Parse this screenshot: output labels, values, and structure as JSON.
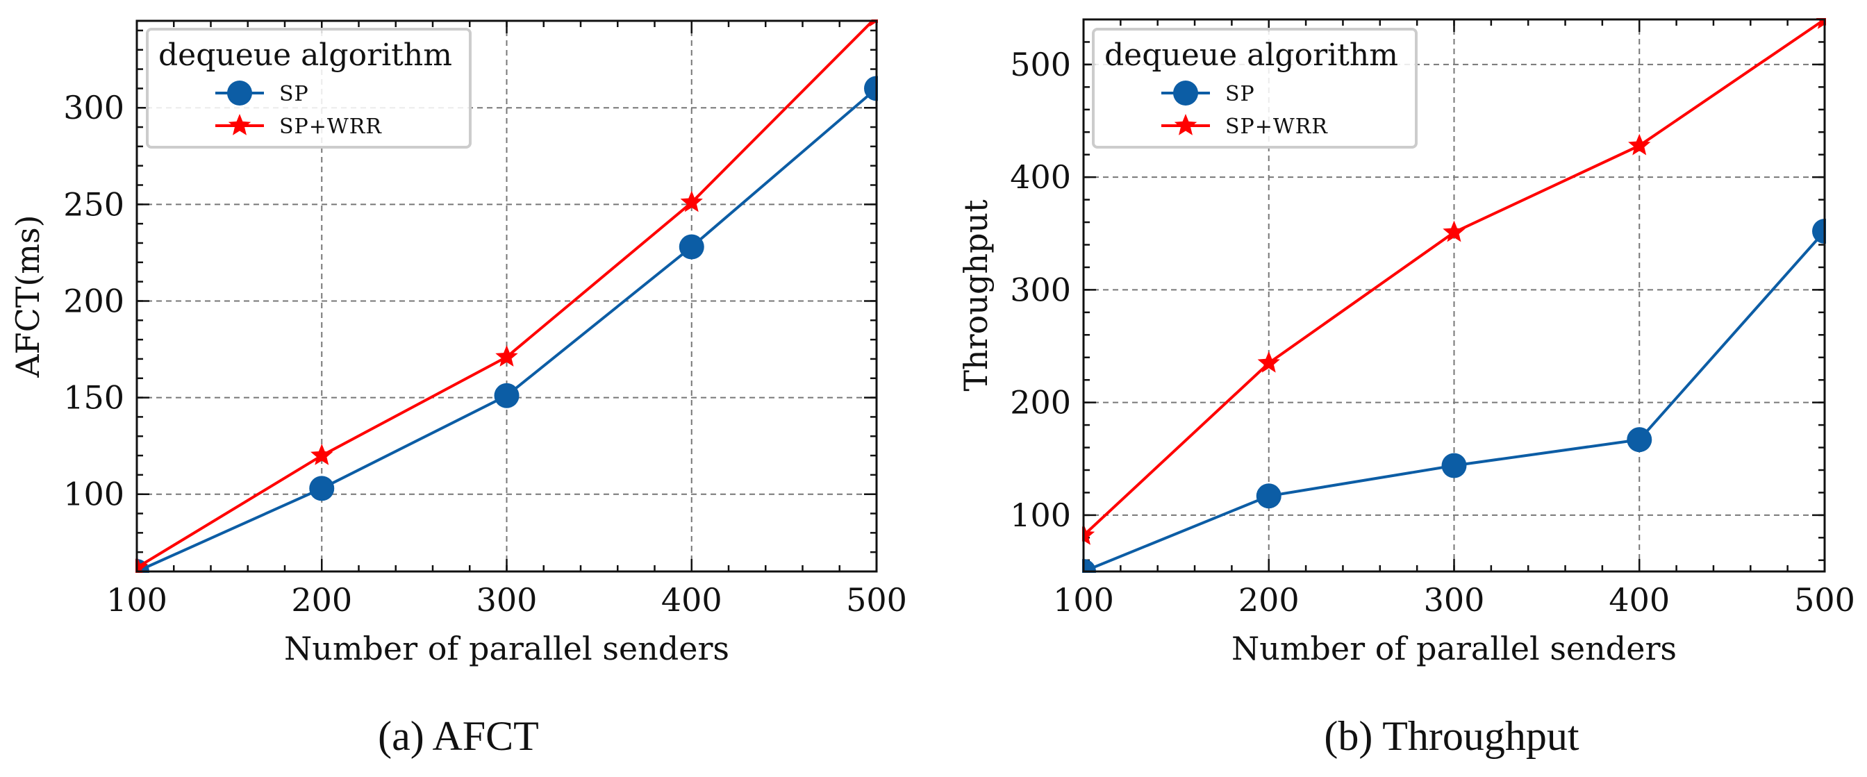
{
  "chart_data": [
    {
      "type": "line",
      "caption": "(a) AFCT",
      "xlabel": "Number of parallel senders",
      "ylabel": "AFCT(ms)",
      "x": [
        100,
        200,
        300,
        400,
        500
      ],
      "xlim": [
        100,
        500
      ],
      "ylim": [
        60,
        345
      ],
      "xticks": [
        100,
        200,
        300,
        400,
        500
      ],
      "yticks": [
        100,
        150,
        200,
        250,
        300
      ],
      "grid": true,
      "legend": {
        "title": "dequeue algorithm",
        "placement": "top-left"
      },
      "series": [
        {
          "name": "SP",
          "marker": "circle",
          "color": "#0c5da5",
          "values": [
            60,
            103,
            151,
            228,
            310
          ]
        },
        {
          "name": "SP+WRR",
          "marker": "star",
          "color": "#ff0000",
          "values": [
            62,
            120,
            171,
            251,
            347
          ]
        }
      ]
    },
    {
      "type": "line",
      "caption": "(b) Throughput",
      "xlabel": "Number of parallel senders",
      "ylabel": "Throughput",
      "x": [
        100,
        200,
        300,
        400,
        500
      ],
      "xlim": [
        100,
        500
      ],
      "ylim": [
        50,
        540
      ],
      "xticks": [
        100,
        200,
        300,
        400,
        500
      ],
      "yticks": [
        100,
        200,
        300,
        400,
        500
      ],
      "grid": true,
      "legend": {
        "title": "dequeue algorithm",
        "placement": "top-left"
      },
      "series": [
        {
          "name": "SP",
          "marker": "circle",
          "color": "#0c5da5",
          "values": [
            50,
            117,
            144,
            167,
            352
          ]
        },
        {
          "name": "SP+WRR",
          "marker": "star",
          "color": "#ff0000",
          "values": [
            82,
            235,
            351,
            428,
            540
          ]
        }
      ]
    }
  ]
}
